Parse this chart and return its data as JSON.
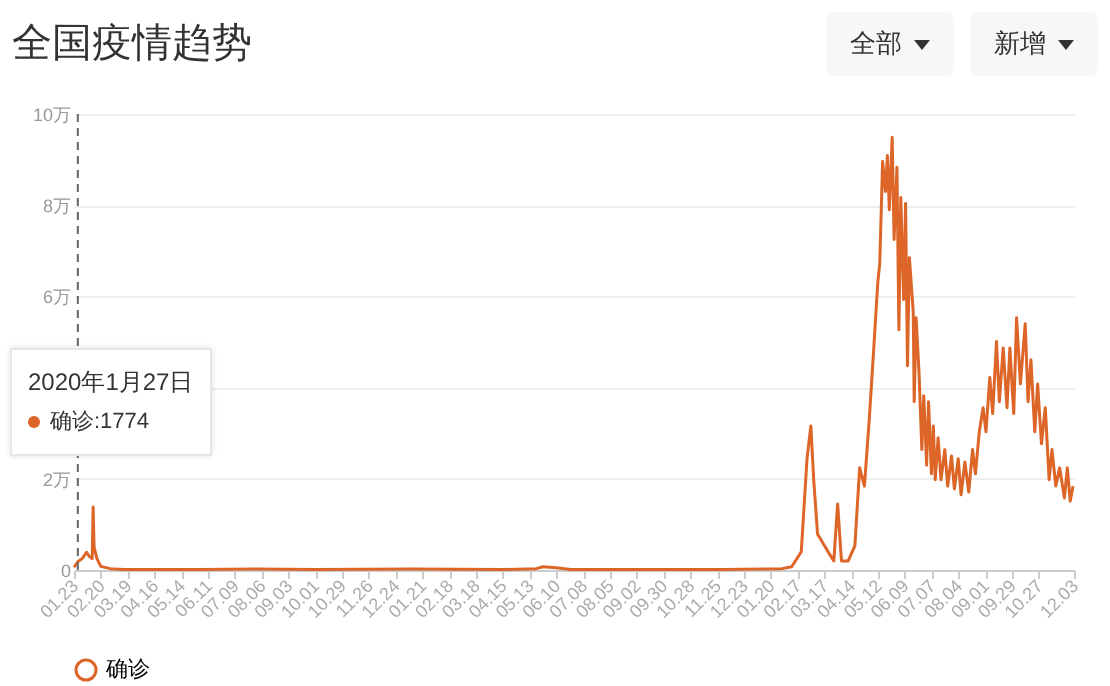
{
  "chart_data": {
    "type": "line",
    "title": "全国疫情趋势",
    "annotations": [
      "全部",
      "新增",
      "2020年1月27日",
      "确诊:1774"
    ],
    "x": [
      "2020-01-23",
      "2020-01-27",
      "2020-02-01",
      "2020-02-05",
      "2020-02-08",
      "2020-02-11",
      "2020-02-12",
      "2020-02-13",
      "2020-02-16",
      "2020-02-20",
      "2020-03-01",
      "2020-03-15",
      "2020-04-15",
      "2020-06-01",
      "2020-08-01",
      "2020-10-01",
      "2021-01-10",
      "2021-04-15",
      "2021-05-20",
      "2021-05-27",
      "2021-06-10",
      "2021-06-25",
      "2021-09-01",
      "2021-12-01",
      "2022-01-15",
      "2022-02-01",
      "2022-02-11",
      "2022-02-21",
      "2022-02-27",
      "2022-03-03",
      "2022-03-06",
      "2022-03-10",
      "2022-03-21",
      "2022-03-27",
      "2022-03-31",
      "2022-04-04",
      "2022-04-11",
      "2022-04-18",
      "2022-04-23",
      "2022-04-28",
      "2022-05-03",
      "2022-05-07",
      "2022-05-12",
      "2022-05-14",
      "2022-05-17",
      "2022-05-20",
      "2022-05-22",
      "2022-05-24",
      "2022-05-27",
      "2022-05-29",
      "2022-06-01",
      "2022-06-03",
      "2022-06-05",
      "2022-06-08",
      "2022-06-10",
      "2022-06-12",
      "2022-06-14",
      "2022-06-18",
      "2022-06-19",
      "2022-06-21",
      "2022-06-24",
      "2022-06-27",
      "2022-06-29",
      "2022-07-02",
      "2022-07-04",
      "2022-07-07",
      "2022-07-09",
      "2022-07-11",
      "2022-07-14",
      "2022-07-17",
      "2022-07-21",
      "2022-07-24",
      "2022-07-28",
      "2022-07-31",
      "2022-08-04",
      "2022-08-07",
      "2022-08-11",
      "2022-08-15",
      "2022-08-19",
      "2022-08-22",
      "2022-08-26",
      "2022-08-30",
      "2022-09-02",
      "2022-09-06",
      "2022-09-09",
      "2022-09-13",
      "2022-09-16",
      "2022-09-20",
      "2022-09-24",
      "2022-09-27",
      "2022-10-01",
      "2022-10-04",
      "2022-10-08",
      "2022-10-13",
      "2022-10-16",
      "2022-10-19",
      "2022-10-23",
      "2022-10-26",
      "2022-10-30",
      "2022-11-03",
      "2022-11-07",
      "2022-11-10",
      "2022-11-14",
      "2022-11-18",
      "2022-11-23",
      "2022-11-26",
      "2022-11-29",
      "2022-12-02"
    ],
    "series": [
      {
        "name": "确诊",
        "color": "#dd6528",
        "values": [
          0.06,
          0.18,
          0.26,
          0.39,
          0.3,
          0.25,
          1.38,
          0.5,
          0.25,
          0.08,
          0.03,
          0.01,
          0.01,
          0.01,
          0.02,
          0.01,
          0.02,
          0.01,
          0.03,
          0.07,
          0.05,
          0.01,
          0.01,
          0.01,
          0.02,
          0.03,
          0.07,
          0.4,
          2.44,
          3.16,
          1.98,
          0.79,
          0.4,
          0.2,
          1.45,
          0.2,
          0.2,
          0.53,
          2.24,
          1.84,
          3.29,
          4.61,
          6.32,
          6.72,
          8.96,
          8.3,
          9.09,
          7.9,
          9.49,
          7.25,
          8.83,
          5.27,
          8.17,
          5.93,
          8.04,
          4.48,
          6.85,
          5.66,
          3.69,
          5.53,
          4.35,
          2.64,
          3.82,
          2.3,
          3.69,
          2.11,
          3.16,
          1.98,
          2.9,
          1.98,
          2.64,
          1.84,
          2.5,
          1.78,
          2.44,
          1.65,
          2.37,
          1.71,
          2.64,
          2.11,
          3.03,
          3.56,
          3.03,
          4.22,
          3.43,
          5.01,
          3.69,
          4.87,
          3.56,
          4.87,
          3.43,
          5.53,
          4.08,
          5.4,
          3.69,
          4.61,
          3.03,
          4.08,
          2.77,
          3.56,
          1.98,
          2.64,
          1.84,
          2.24,
          1.58,
          2.24,
          1.51,
          1.84
        ]
      }
    ],
    "xlim": [
      "2020-01-23",
      "2022-12-03"
    ],
    "xticks": [
      {
        "value": "2020-01-23",
        "label": "01.23"
      },
      {
        "value": "2020-02-20",
        "label": "02.20"
      },
      {
        "value": "2020-03-19",
        "label": "03.19"
      },
      {
        "value": "2020-04-16",
        "label": "04.16"
      },
      {
        "value": "2020-05-14",
        "label": "05.14"
      },
      {
        "value": "2020-06-11",
        "label": "06.11"
      },
      {
        "value": "2020-07-09",
        "label": "07.09"
      },
      {
        "value": "2020-08-06",
        "label": "08.06"
      },
      {
        "value": "2020-09-03",
        "label": "09.03"
      },
      {
        "value": "2020-10-01",
        "label": "10.01"
      },
      {
        "value": "2020-10-29",
        "label": "10.29"
      },
      {
        "value": "2020-11-26",
        "label": "11.26"
      },
      {
        "value": "2020-12-24",
        "label": "12.24"
      },
      {
        "value": "2021-01-21",
        "label": "01.21"
      },
      {
        "value": "2021-02-18",
        "label": "02.18"
      },
      {
        "value": "2021-03-18",
        "label": "03.18"
      },
      {
        "value": "2021-04-15",
        "label": "04.15"
      },
      {
        "value": "2021-05-13",
        "label": "05.13"
      },
      {
        "value": "2021-06-10",
        "label": "06.10"
      },
      {
        "value": "2021-07-08",
        "label": "07.08"
      },
      {
        "value": "2021-08-05",
        "label": "08.05"
      },
      {
        "value": "2021-09-02",
        "label": "09.02"
      },
      {
        "value": "2021-09-30",
        "label": "09.30"
      },
      {
        "value": "2021-10-28",
        "label": "10.28"
      },
      {
        "value": "2021-11-25",
        "label": "11.25"
      },
      {
        "value": "2021-12-23",
        "label": "12.23"
      },
      {
        "value": "2022-01-20",
        "label": "01.20"
      },
      {
        "value": "2022-02-17",
        "label": "02.17"
      },
      {
        "value": "2022-03-17",
        "label": "03.17"
      },
      {
        "value": "2022-04-14",
        "label": "04.14"
      },
      {
        "value": "2022-05-12",
        "label": "05.12"
      },
      {
        "value": "2022-06-09",
        "label": "06.09"
      },
      {
        "value": "2022-07-07",
        "label": "07.07"
      },
      {
        "value": "2022-08-04",
        "label": "08.04"
      },
      {
        "value": "2022-09-01",
        "label": "09.01"
      },
      {
        "value": "2022-09-29",
        "label": "09.29"
      },
      {
        "value": "2022-10-27",
        "label": "10.27"
      },
      {
        "value": "2022-12-03",
        "label": "12.03"
      }
    ],
    "ylim": [
      0,
      10
    ],
    "yticks": [
      0,
      {
        "value": 2,
        "label": "2万"
      },
      {
        "value": 4,
        "label": null
      },
      {
        "value": 6,
        "label": "6万"
      },
      {
        "value": 8,
        "label": "8万"
      },
      {
        "value": 10,
        "label": "10万"
      }
    ],
    "ref_lines": [
      {
        "axis": "x",
        "value": "2020-01-27",
        "color": "#666666",
        "line_style": "dashed"
      }
    ],
    "grid": "y",
    "legend": "bottom"
  }
}
